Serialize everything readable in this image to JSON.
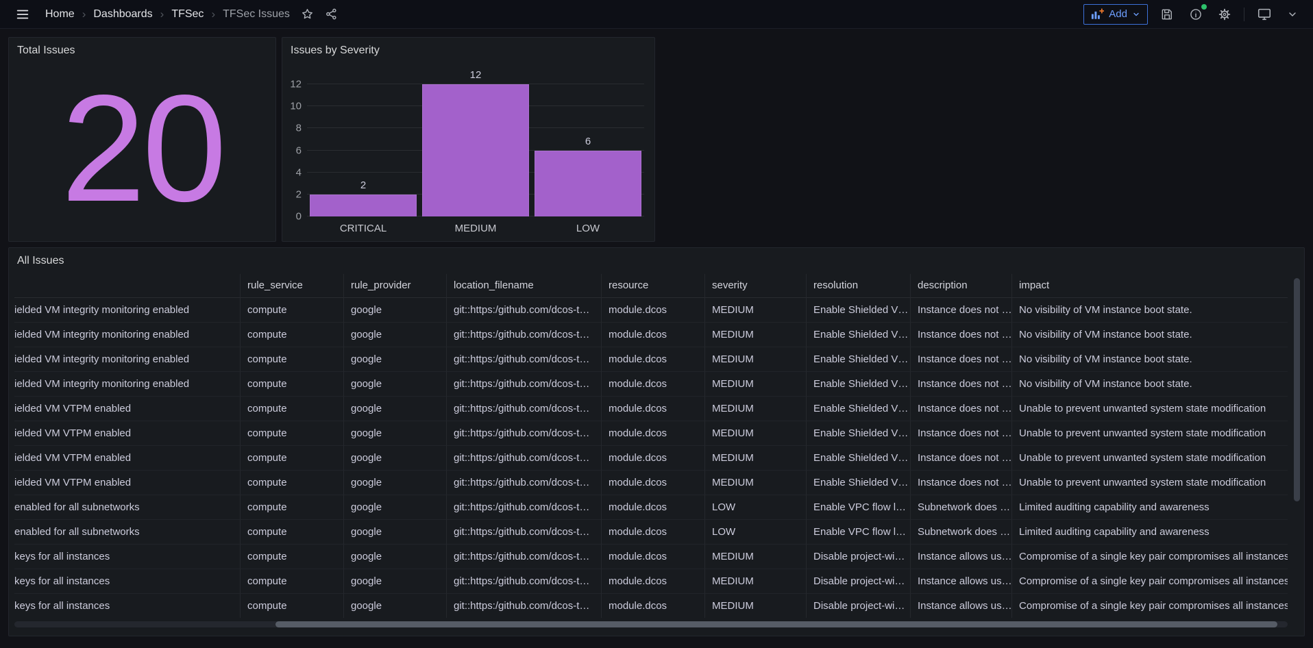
{
  "topbar": {
    "breadcrumbs": [
      "Home",
      "Dashboards",
      "TFSec",
      "TFSec Issues"
    ],
    "add_button": {
      "label": "Add"
    },
    "icons": [
      "menu-icon",
      "star-icon",
      "share-icon",
      "bar-chart-plus-icon",
      "chevron-down-icon",
      "save-icon",
      "info-circle-icon",
      "gear-icon",
      "monitor-icon",
      "caret-down-icon"
    ]
  },
  "stat_panel": {
    "title": "Total Issues",
    "value": "20"
  },
  "chart_panel": {
    "title": "Issues by Severity"
  },
  "table_panel": {
    "title": "All Issues"
  },
  "chart_data": {
    "type": "bar",
    "title": "Issues by Severity",
    "categories": [
      "CRITICAL",
      "MEDIUM",
      "LOW"
    ],
    "values": [
      2,
      12,
      6
    ],
    "xlabel": "",
    "ylabel": "",
    "ylim": [
      0,
      12
    ],
    "yticks": [
      0,
      2,
      4,
      6,
      8,
      10,
      12
    ],
    "grid": true,
    "legend": false,
    "value_labels": true,
    "bar_color": "#a361cb"
  },
  "table": {
    "columns": [
      "",
      "rule_service",
      "rule_provider",
      "location_filename",
      "resource",
      "severity",
      "resolution",
      "description",
      "impact"
    ],
    "rows": [
      [
        "ielded VM integrity monitoring enabled",
        "compute",
        "google",
        "git::https:/github.com/dcos-t…",
        "module.dcos",
        "MEDIUM",
        "Enable Shielded V…",
        "Instance does not …",
        "No visibility of VM instance boot state."
      ],
      [
        "ielded VM integrity monitoring enabled",
        "compute",
        "google",
        "git::https:/github.com/dcos-t…",
        "module.dcos",
        "MEDIUM",
        "Enable Shielded V…",
        "Instance does not …",
        "No visibility of VM instance boot state."
      ],
      [
        "ielded VM integrity monitoring enabled",
        "compute",
        "google",
        "git::https:/github.com/dcos-t…",
        "module.dcos",
        "MEDIUM",
        "Enable Shielded V…",
        "Instance does not …",
        "No visibility of VM instance boot state."
      ],
      [
        "ielded VM integrity monitoring enabled",
        "compute",
        "google",
        "git::https:/github.com/dcos-t…",
        "module.dcos",
        "MEDIUM",
        "Enable Shielded V…",
        "Instance does not …",
        "No visibility of VM instance boot state."
      ],
      [
        "ielded VM VTPM enabled",
        "compute",
        "google",
        "git::https:/github.com/dcos-t…",
        "module.dcos",
        "MEDIUM",
        "Enable Shielded V…",
        "Instance does not …",
        "Unable to prevent unwanted system state modification"
      ],
      [
        "ielded VM VTPM enabled",
        "compute",
        "google",
        "git::https:/github.com/dcos-t…",
        "module.dcos",
        "MEDIUM",
        "Enable Shielded V…",
        "Instance does not …",
        "Unable to prevent unwanted system state modification"
      ],
      [
        "ielded VM VTPM enabled",
        "compute",
        "google",
        "git::https:/github.com/dcos-t…",
        "module.dcos",
        "MEDIUM",
        "Enable Shielded V…",
        "Instance does not …",
        "Unable to prevent unwanted system state modification"
      ],
      [
        "ielded VM VTPM enabled",
        "compute",
        "google",
        "git::https:/github.com/dcos-t…",
        "module.dcos",
        "MEDIUM",
        "Enable Shielded V…",
        "Instance does not …",
        "Unable to prevent unwanted system state modification"
      ],
      [
        "enabled for all subnetworks",
        "compute",
        "google",
        "git::https:/github.com/dcos-t…",
        "module.dcos",
        "LOW",
        "Enable VPC flow l…",
        "Subnetwork does …",
        "Limited auditing capability and awareness"
      ],
      [
        "enabled for all subnetworks",
        "compute",
        "google",
        "git::https:/github.com/dcos-t…",
        "module.dcos",
        "LOW",
        "Enable VPC flow l…",
        "Subnetwork does …",
        "Limited auditing capability and awareness"
      ],
      [
        "keys for all instances",
        "compute",
        "google",
        "git::https:/github.com/dcos-t…",
        "module.dcos",
        "MEDIUM",
        "Disable project-wi…",
        "Instance allows us…",
        "Compromise of a single key pair compromises all instances"
      ],
      [
        "keys for all instances",
        "compute",
        "google",
        "git::https:/github.com/dcos-t…",
        "module.dcos",
        "MEDIUM",
        "Disable project-wi…",
        "Instance allows us…",
        "Compromise of a single key pair compromises all instances"
      ],
      [
        "keys for all instances",
        "compute",
        "google",
        "git::https:/github.com/dcos-t…",
        "module.dcos",
        "MEDIUM",
        "Disable project-wi…",
        "Instance allows us…",
        "Compromise of a single key pair compromises all instances"
      ]
    ]
  },
  "colors": {
    "stat_value": "#c77ae3",
    "bar_purple": "#a361cb",
    "add_button_blue": "#6e9fff",
    "add_button_border": "#3d71d9",
    "online_green": "#2dc26b",
    "panel_bg": "#181b1f",
    "page_bg": "#111217"
  }
}
